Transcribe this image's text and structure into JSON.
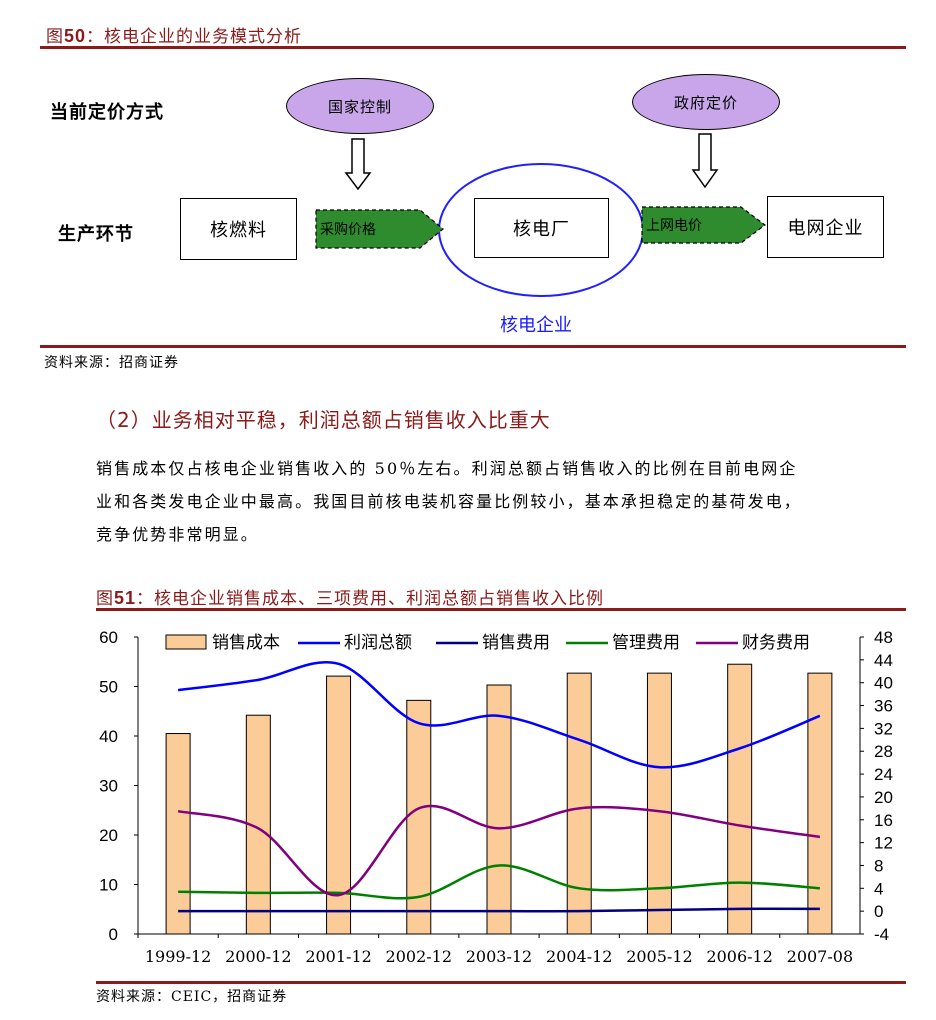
{
  "figure50": {
    "title_prefix": "图",
    "title_number": "50",
    "title_text": "：核电企业的业务模式分析",
    "row_pricing_label": "当前定价方式",
    "row_production_label": "生产环节",
    "oval_national_control": "国家控制",
    "oval_government_pricing": "政府定价",
    "box_nuclear_fuel": "核燃料",
    "arrow_purchase_price": "采购价格",
    "box_nuclear_plant": "核电厂",
    "arrow_grid_price": "上网电价",
    "box_grid_company": "电网企业",
    "enterprise_label": "核电企业",
    "source": "资料来源：招商证券"
  },
  "section": {
    "heading": "（2）业务相对平稳，利润总额占销售收入比重大",
    "paragraph_lines": [
      "销售成本仅占核电企业销售收入的 50％左右。利润总额占销售收入的比例在目前电网企",
      "业和各类发电企业中最高。我国目前核电装机容量比例较小，基本承担稳定的基荷发电，",
      "竞争优势非常明显。"
    ]
  },
  "figure51": {
    "title_prefix": "图",
    "title_number": "51",
    "title_text": "：核电企业销售成本、三项费用、利润总额占销售收入比例",
    "source": "资料来源：CEIC，招商证券"
  },
  "chart_data": {
    "type": "bar",
    "categories": [
      "1999-12",
      "2000-12",
      "2001-12",
      "2002-12",
      "2003-12",
      "2004-12",
      "2005-12",
      "2006-12",
      "2007-08"
    ],
    "left_axis": {
      "ylim": [
        0,
        60
      ],
      "ticks": [
        "0",
        "10",
        "20",
        "30",
        "40",
        "50",
        "60"
      ]
    },
    "right_axis": {
      "ylim": [
        -4,
        48
      ],
      "ticks": [
        "-4",
        "0",
        "4",
        "8",
        "12",
        "16",
        "20",
        "24",
        "28",
        "32",
        "36",
        "40",
        "44",
        "48"
      ]
    },
    "bar_series": {
      "name": "销售成本",
      "axis": "left",
      "color": "#fbcb98",
      "values": [
        40.5,
        44.2,
        52.1,
        47.2,
        50.3,
        52.7,
        52.7,
        54.5,
        52.7
      ]
    },
    "line_series": [
      {
        "name": "利润总额",
        "axis": "right",
        "color": "#0000ff",
        "values": [
          38.7,
          40.5,
          43.3,
          32.9,
          34.2,
          30.0,
          25.2,
          28.5,
          34.2
        ]
      },
      {
        "name": "销售费用",
        "axis": "right",
        "color": "#000080",
        "values": [
          0.0,
          0.0,
          0.0,
          0.0,
          0.0,
          0.0,
          0.2,
          0.4,
          0.4
        ]
      },
      {
        "name": "管理费用",
        "axis": "right",
        "color": "#008000",
        "values": [
          3.4,
          3.2,
          3.2,
          2.5,
          8.0,
          4.0,
          4.0,
          5.0,
          4.0
        ]
      },
      {
        "name": "财务费用",
        "axis": "right",
        "color": "#800080",
        "values": [
          17.5,
          14.5,
          2.8,
          18.0,
          14.5,
          18.0,
          17.5,
          15.0,
          13.0
        ]
      }
    ]
  }
}
